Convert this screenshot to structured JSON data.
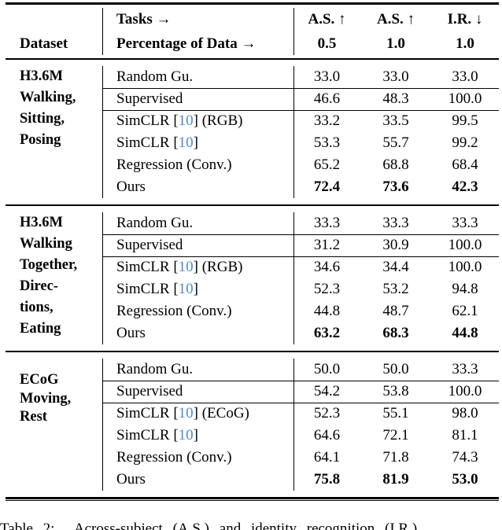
{
  "colors": {
    "citation_link": "#4f8bc9",
    "text": "#000000",
    "rule": "#000000"
  },
  "header": {
    "dataset_label": "Dataset",
    "tasks_label": "Tasks →",
    "percentage_label": "Percentage of Data →",
    "metrics": [
      {
        "name": "A.S. ↑",
        "pct": "0.5"
      },
      {
        "name": "A.S. ↑",
        "pct": "1.0"
      },
      {
        "name": "I.R. ↓",
        "pct": "1.0"
      }
    ]
  },
  "blocks": [
    {
      "dataset_lines": [
        "H3.6M",
        "Walking,",
        "Sitting,",
        "Posing"
      ],
      "rows": [
        {
          "m1": "Random Gu.",
          "v": [
            "33.0",
            "33.0",
            "33.0"
          ]
        },
        {
          "m1": "Supervised",
          "v": [
            "46.6",
            "48.3",
            "100.0"
          ]
        },
        {
          "m1": "SimCLR [",
          "cite": "10",
          "m2": "] (RGB)",
          "v": [
            "33.2",
            "33.5",
            "99.5"
          ]
        },
        {
          "m1": "SimCLR [",
          "cite": "10",
          "m2": "]",
          "v": [
            "53.3",
            "55.7",
            "99.2"
          ]
        },
        {
          "m1": "Regression (Conv.)",
          "v": [
            "65.2",
            "68.8",
            "68.4"
          ]
        },
        {
          "m1": "Ours",
          "v": [
            "72.4",
            "73.6",
            "42.3"
          ]
        }
      ]
    },
    {
      "dataset_lines": [
        "H3.6M",
        "Walking",
        "Together,",
        "Direc-",
        "tions,",
        "Eating"
      ],
      "rows": [
        {
          "m1": "Random Gu.",
          "v": [
            "33.3",
            "33.3",
            "33.3"
          ]
        },
        {
          "m1": "Supervised",
          "v": [
            "31.2",
            "30.9",
            "100.0"
          ]
        },
        {
          "m1": "SimCLR [",
          "cite": "10",
          "m2": "] (RGB)",
          "v": [
            "34.6",
            "34.4",
            "100.0"
          ]
        },
        {
          "m1": "SimCLR [",
          "cite": "10",
          "m2": "]",
          "v": [
            "52.3",
            "53.2",
            "94.8"
          ]
        },
        {
          "m1": "Regression (Conv.)",
          "v": [
            "44.8",
            "48.7",
            "62.1"
          ]
        },
        {
          "m1": "Ours",
          "v": [
            "63.2",
            "68.3",
            "44.8"
          ]
        }
      ]
    },
    {
      "dataset_lines": [
        "ECoG",
        "Moving,",
        "Rest"
      ],
      "rows": [
        {
          "m1": "Random Gu.",
          "v": [
            "50.0",
            "50.0",
            "33.3"
          ]
        },
        {
          "m1": "Supervised",
          "v": [
            "54.2",
            "53.8",
            "100.0"
          ]
        },
        {
          "m1": "SimCLR [",
          "cite": "10",
          "m2": "] (ECoG)",
          "v": [
            "52.3",
            "55.1",
            "98.0"
          ]
        },
        {
          "m1": "SimCLR [",
          "cite": "10",
          "m2": "]",
          "v": [
            "64.6",
            "72.1",
            "81.1"
          ]
        },
        {
          "m1": "Regression (Conv.)",
          "v": [
            "64.1",
            "71.8",
            "74.3"
          ]
        },
        {
          "m1": "Ours",
          "v": [
            "75.8",
            "81.9",
            "53.0"
          ]
        }
      ]
    }
  ],
  "caption": "Table 2:  Across-subject (A.S.) and identity recognition (I.R.)"
}
